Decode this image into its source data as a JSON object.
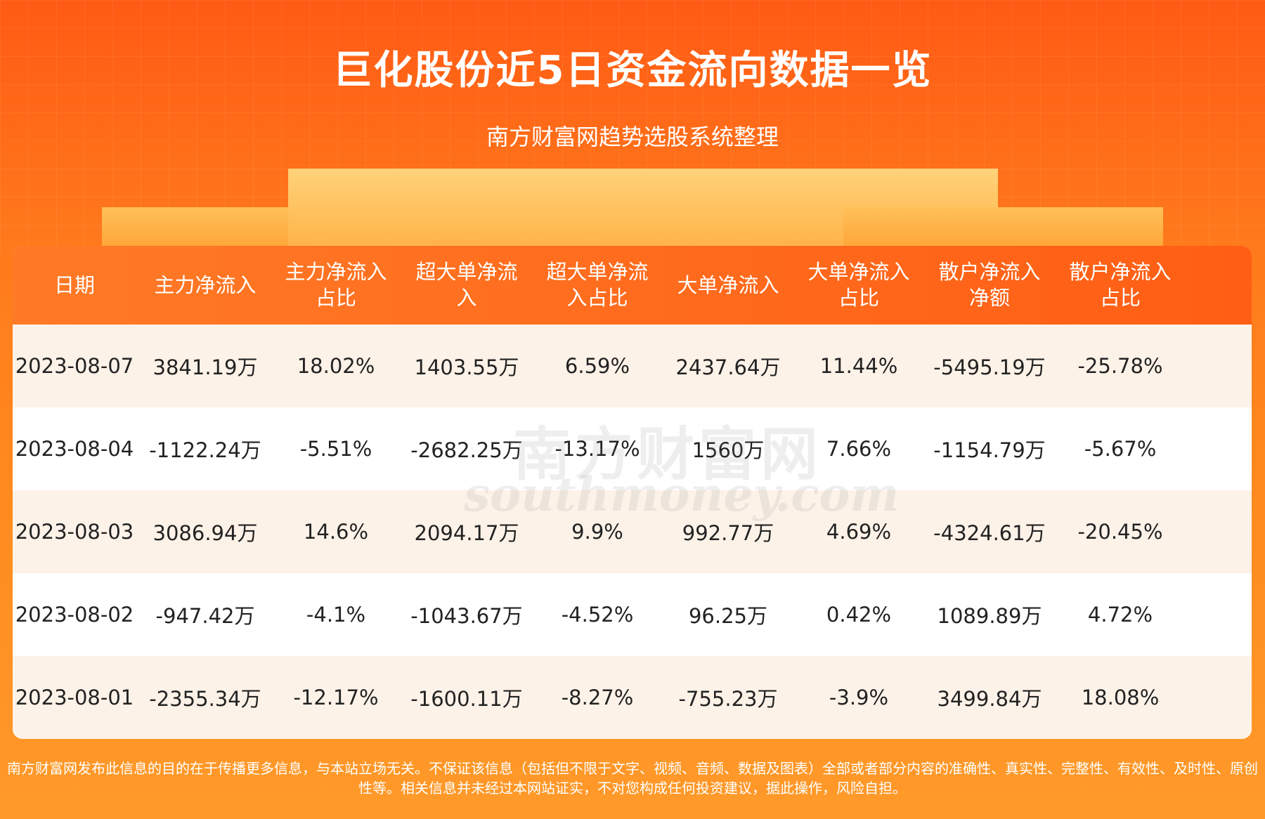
{
  "header": {
    "title": "巨化股份近5日资金流向数据一览",
    "subtitle": "南方财富网趋势选股系统整理"
  },
  "table": {
    "columns": [
      "日期",
      "主力净流入",
      "主力净流入占比",
      "超大单净流入",
      "超大单净流入占比",
      "大单净流入",
      "大单净流入占比",
      "散户净流入净额",
      "散户净流入占比"
    ],
    "rows": [
      [
        "2023-08-07",
        "3841.19万",
        "18.02%",
        "1403.55万",
        "6.59%",
        "2437.64万",
        "11.44%",
        "-5495.19万",
        "-25.78%"
      ],
      [
        "2023-08-04",
        "-1122.24万",
        "-5.51%",
        "-2682.25万",
        "-13.17%",
        "1560万",
        "7.66%",
        "-1154.79万",
        "-5.67%"
      ],
      [
        "2023-08-03",
        "3086.94万",
        "14.6%",
        "2094.17万",
        "9.9%",
        "992.77万",
        "4.69%",
        "-4324.61万",
        "-20.45%"
      ],
      [
        "2023-08-02",
        "-947.42万",
        "-4.1%",
        "-1043.67万",
        "-4.52%",
        "96.25万",
        "0.42%",
        "1089.89万",
        "4.72%"
      ],
      [
        "2023-08-01",
        "-2355.34万",
        "-12.17%",
        "-1600.11万",
        "-8.27%",
        "-755.23万",
        "-3.9%",
        "3499.84万",
        "18.08%"
      ]
    ]
  },
  "watermark": {
    "name": "南方财富网",
    "site": "southmoney.com"
  },
  "footer": "南方财富网发布此信息的目的在于传播更多信息，与本站立场无关。不保证该信息（包括但不限于文字、视频、音频、数据及图表）全部或者部分内容的准确性、真实性、完整性、有效性、及时性、原创性等。相关信息并未经过本网站证实，不对您构成任何投资建议，据此操作，风险自担。"
}
